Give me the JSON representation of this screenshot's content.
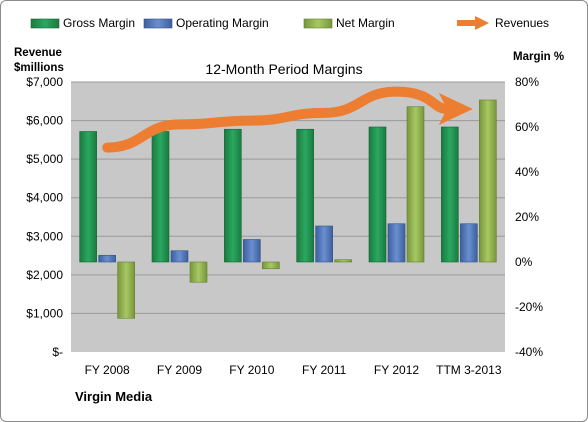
{
  "chart_data": {
    "type": "bar",
    "title": "12-Month Period Margins",
    "company": "Virgin Media",
    "categories": [
      "FY 2008",
      "FY 2009",
      "FY 2010",
      "FY 2011",
      "FY 2012",
      "TTM 3-2013"
    ],
    "left_axis": {
      "title_line1": "Revenue",
      "title_line2": "$millions",
      "range": [
        0,
        7000
      ],
      "ticks": [
        0,
        1000,
        2000,
        3000,
        4000,
        5000,
        6000,
        7000
      ],
      "tick_labels": [
        "$-",
        "$1,000",
        "$2,000",
        "$3,000",
        "$4,000",
        "$5,000",
        "$6,000",
        "$7,000"
      ]
    },
    "right_axis": {
      "title": "Margin %",
      "range": [
        -40,
        80
      ],
      "ticks": [
        -40,
        -20,
        0,
        20,
        40,
        60,
        80
      ],
      "tick_labels": [
        "-40%",
        "-20%",
        "0%",
        "20%",
        "40%",
        "60%",
        "80%"
      ]
    },
    "series": [
      {
        "name": "Gross Margin",
        "axis": "right",
        "color": "#1f8a4c",
        "values": [
          58,
          58,
          59,
          59,
          60,
          60
        ]
      },
      {
        "name": "Operating Margin",
        "axis": "right",
        "color": "#4f72b8",
        "values": [
          3,
          5,
          10,
          16,
          17,
          17
        ]
      },
      {
        "name": "Net Margin",
        "axis": "right",
        "color": "#8fb04a",
        "values": [
          -25,
          -9,
          -3,
          1,
          69,
          72
        ]
      },
      {
        "name": "Revenues",
        "axis": "left",
        "type": "line",
        "color": "#ed7d31",
        "values": [
          5300,
          5900,
          6000,
          6200,
          6750,
          6300
        ]
      }
    ],
    "plot_background": "#c8c8c8",
    "grid": true,
    "legend_position": "top"
  }
}
